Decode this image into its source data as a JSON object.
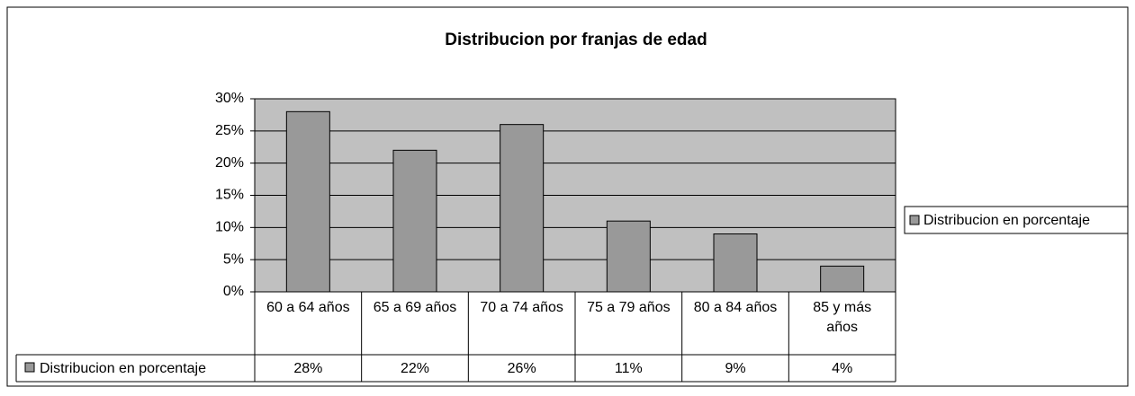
{
  "chart_data": {
    "type": "bar",
    "title": "Distribucion por franjas de edad",
    "categories": [
      "60 a 64 años",
      "65 a 69 años",
      "70 a 74 años",
      "75 a 79 años",
      "80 a 84 años",
      "85 y más años"
    ],
    "series": [
      {
        "name": "Distribucion en porcentaje",
        "color": "#999999",
        "values": [
          28,
          22,
          26,
          11,
          9,
          4
        ],
        "value_labels": [
          "28%",
          "22%",
          "26%",
          "11%",
          "9%",
          "4%"
        ]
      }
    ],
    "ylim": [
      0,
      30
    ],
    "yticks": [
      {
        "value": 0,
        "label": "0%"
      },
      {
        "value": 5,
        "label": "5%"
      },
      {
        "value": 10,
        "label": "10%"
      },
      {
        "value": 15,
        "label": "15%"
      },
      {
        "value": 20,
        "label": "20%"
      },
      {
        "value": 25,
        "label": "25%"
      },
      {
        "value": 30,
        "label": "30%"
      }
    ],
    "grid": true,
    "legend": "right",
    "plot_background": "#c0c0c0"
  }
}
